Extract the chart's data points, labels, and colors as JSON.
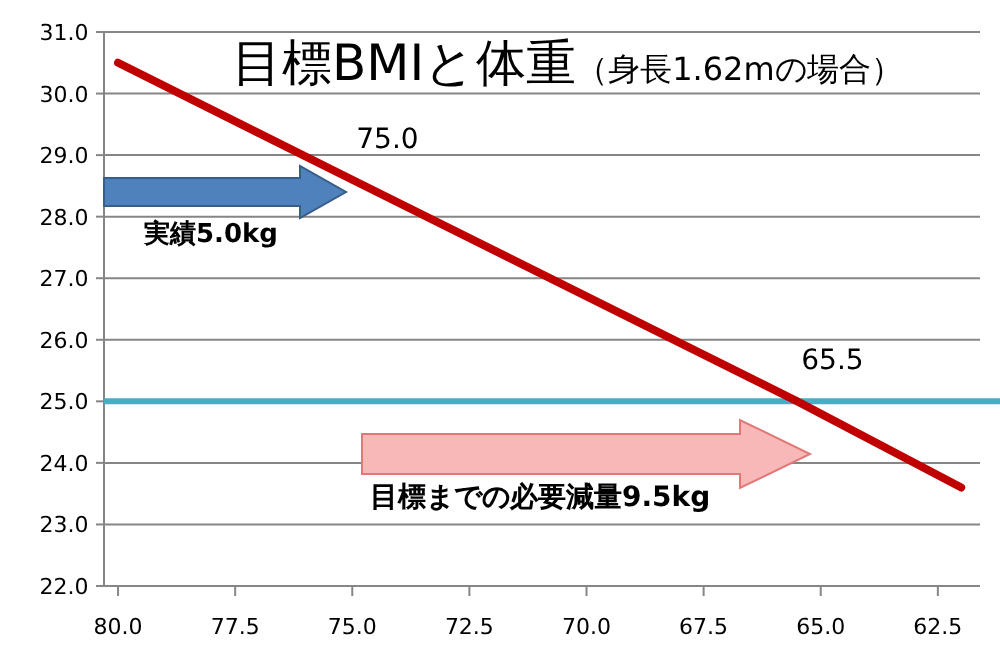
{
  "chart_data": {
    "type": "line",
    "title": "目標BMIと体重",
    "subtitle": "（身長1.62mの場合）",
    "x": [
      80,
      75,
      65.5,
      62
    ],
    "series": [
      {
        "color": "#c00000",
        "values": [
          30.5,
          28.6,
          25.0,
          23.6
        ]
      }
    ],
    "xlim": [
      80.3,
      61.6
    ],
    "xticks": [
      {
        "value": 80,
        "label": "80.0"
      },
      {
        "value": 77.5,
        "label": "77.5"
      },
      {
        "value": 75,
        "label": "75.0"
      },
      {
        "value": 72.5,
        "label": "72.5"
      },
      {
        "value": 70,
        "label": "70.0"
      },
      {
        "value": 67.5,
        "label": "67.5"
      },
      {
        "value": 65,
        "label": "65.0"
      },
      {
        "value": 62.5,
        "label": "62.5"
      }
    ],
    "ylim": [
      22,
      31
    ],
    "yticks": [
      {
        "value": 22,
        "label": "22.0"
      },
      {
        "value": 23,
        "label": "23.0"
      },
      {
        "value": 24,
        "label": "24.0"
      },
      {
        "value": 25,
        "label": "25.0"
      },
      {
        "value": 26,
        "label": "26.0"
      },
      {
        "value": 27,
        "label": "27.0"
      },
      {
        "value": 28,
        "label": "28.0"
      },
      {
        "value": 29,
        "label": "29.0"
      },
      {
        "value": 30,
        "label": "30.0"
      },
      {
        "value": 31,
        "label": "31.0"
      }
    ],
    "grid": "y",
    "ref_lines": [
      {
        "axis": "y",
        "value": 25,
        "color": "#4bacc6"
      }
    ],
    "annotations": [
      {
        "text": "75.0",
        "x": 75,
        "y": 28.6
      },
      {
        "text": "65.5",
        "x": 65.5,
        "y": 25.0
      },
      "実績5.0kg",
      "目標までの必要減量9.5kg"
    ]
  }
}
